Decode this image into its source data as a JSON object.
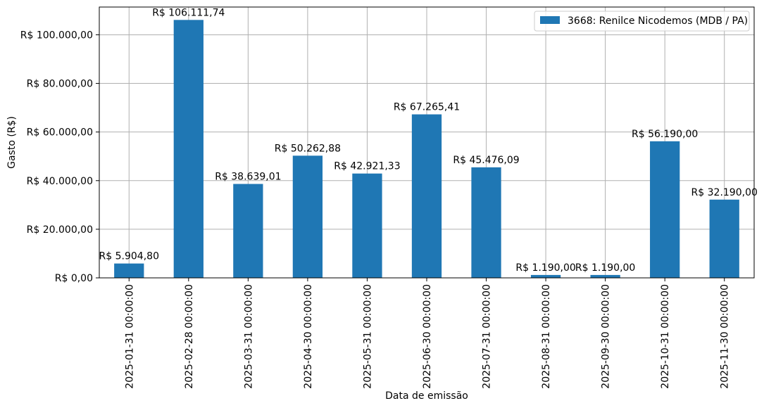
{
  "chart_data": {
    "type": "bar",
    "title": "",
    "xlabel": "Data de emissão",
    "ylabel": "Gasto (R$)",
    "ylim": [
      0,
      111417.33
    ],
    "grid": true,
    "legend_position": "top-right",
    "bar_color": "#1f77b4",
    "categories": [
      "2025-01-31 00:00:00",
      "2025-02-28 00:00:00",
      "2025-03-31 00:00:00",
      "2025-04-30 00:00:00",
      "2025-05-31 00:00:00",
      "2025-06-30 00:00:00",
      "2025-07-31 00:00:00",
      "2025-08-31 00:00:00",
      "2025-09-30 00:00:00",
      "2025-10-31 00:00:00",
      "2025-11-30 00:00:00"
    ],
    "series": [
      {
        "name": "3668: Renilce Nicodemos (MDB / PA)",
        "values": [
          5904.8,
          106111.74,
          38639.01,
          50262.88,
          42921.33,
          67265.41,
          45476.09,
          1190.0,
          1190.0,
          56190.0,
          32190.0
        ]
      }
    ],
    "data_labels": [
      "R$ 5.904,80",
      "R$ 106.111,74",
      "R$ 38.639,01",
      "R$ 50.262,88",
      "R$ 42.921,33",
      "R$ 67.265,41",
      "R$ 45.476,09",
      "R$ 1.190,00",
      "R$ 1.190,00",
      "R$ 56.190,00",
      "R$ 32.190,00"
    ],
    "yticks": [
      0,
      20000,
      40000,
      60000,
      80000,
      100000
    ],
    "ytick_labels": [
      "R$ 0,00",
      "R$ 20.000,00",
      "R$ 40.000,00",
      "R$ 60.000,00",
      "R$ 80.000,00",
      "R$ 100.000,00"
    ]
  }
}
